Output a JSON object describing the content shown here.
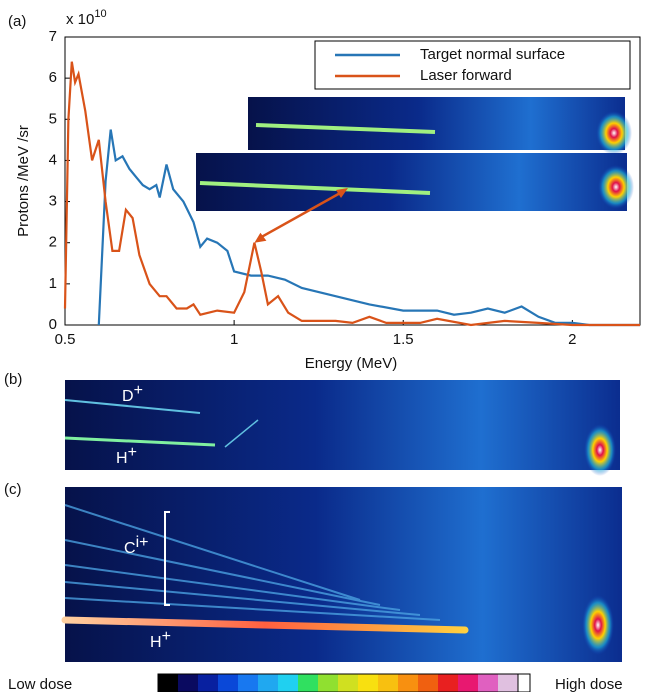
{
  "chart_data": {
    "type": "line",
    "panel_label": "(a)",
    "multiplier": "x 10",
    "multiplier_exp": "10",
    "ylabel": "Protons /MeV /sr",
    "xlabel": "Energy (MeV)",
    "xlim": [
      0.5,
      2.2
    ],
    "ylim": [
      0,
      7
    ],
    "xticks": [
      0.5,
      1,
      1.5,
      2
    ],
    "yticks": [
      0,
      1,
      2,
      3,
      4,
      5,
      6,
      7
    ],
    "legend": "upper right",
    "series": [
      {
        "name": "Target normal surface",
        "color": "#2776b6",
        "x": [
          0.6,
          0.62,
          0.635,
          0.65,
          0.67,
          0.69,
          0.71,
          0.73,
          0.75,
          0.77,
          0.78,
          0.8,
          0.82,
          0.85,
          0.88,
          0.9,
          0.92,
          0.95,
          0.98,
          1.0,
          1.05,
          1.1,
          1.15,
          1.2,
          1.3,
          1.4,
          1.5,
          1.6,
          1.65,
          1.7,
          1.75,
          1.8,
          1.85,
          1.9,
          1.95,
          2.0,
          2.05,
          2.2
        ],
        "values": [
          0,
          3.5,
          4.75,
          4.0,
          4.1,
          3.8,
          3.6,
          3.4,
          3.3,
          3.4,
          3.1,
          3.9,
          3.3,
          3.0,
          2.5,
          1.9,
          2.1,
          2.0,
          1.8,
          1.3,
          1.2,
          1.2,
          1.1,
          0.9,
          0.7,
          0.5,
          0.35,
          0.35,
          0.25,
          0.3,
          0.4,
          0.3,
          0.45,
          0.2,
          0.05,
          0.05,
          0,
          0
        ]
      },
      {
        "name": "Laser forward",
        "color": "#d95319",
        "x": [
          0.5,
          0.51,
          0.52,
          0.53,
          0.54,
          0.56,
          0.58,
          0.6,
          0.62,
          0.64,
          0.66,
          0.68,
          0.7,
          0.72,
          0.75,
          0.78,
          0.8,
          0.83,
          0.86,
          0.88,
          0.9,
          0.95,
          1.0,
          1.03,
          1.06,
          1.08,
          1.1,
          1.13,
          1.16,
          1.2,
          1.3,
          1.35,
          1.4,
          1.45,
          1.55,
          1.6,
          1.7,
          1.8,
          1.9,
          2.0,
          2.2
        ],
        "values": [
          0.4,
          5.0,
          6.4,
          5.9,
          6.1,
          5.2,
          4.0,
          4.5,
          3.0,
          1.8,
          1.8,
          2.8,
          2.6,
          1.7,
          1.0,
          0.7,
          0.7,
          0.4,
          0.4,
          0.5,
          0.25,
          0.35,
          0.3,
          0.8,
          2.0,
          1.3,
          0.5,
          0.7,
          0.3,
          0.1,
          0.1,
          0.05,
          0.2,
          0.05,
          0.05,
          0.15,
          0,
          0.1,
          0.05,
          0,
          0
        ]
      }
    ]
  },
  "panel_b": {
    "label": "(b)",
    "ion1": "D",
    "ion1_sup": "+",
    "ion2": "H",
    "ion2_sup": "+"
  },
  "panel_c": {
    "label": "(c)",
    "ion1": "C",
    "ion1_sup": "i+",
    "ion2": "H",
    "ion2_sup": "+"
  },
  "colorbar": {
    "low": "Low dose",
    "high": "High dose"
  }
}
